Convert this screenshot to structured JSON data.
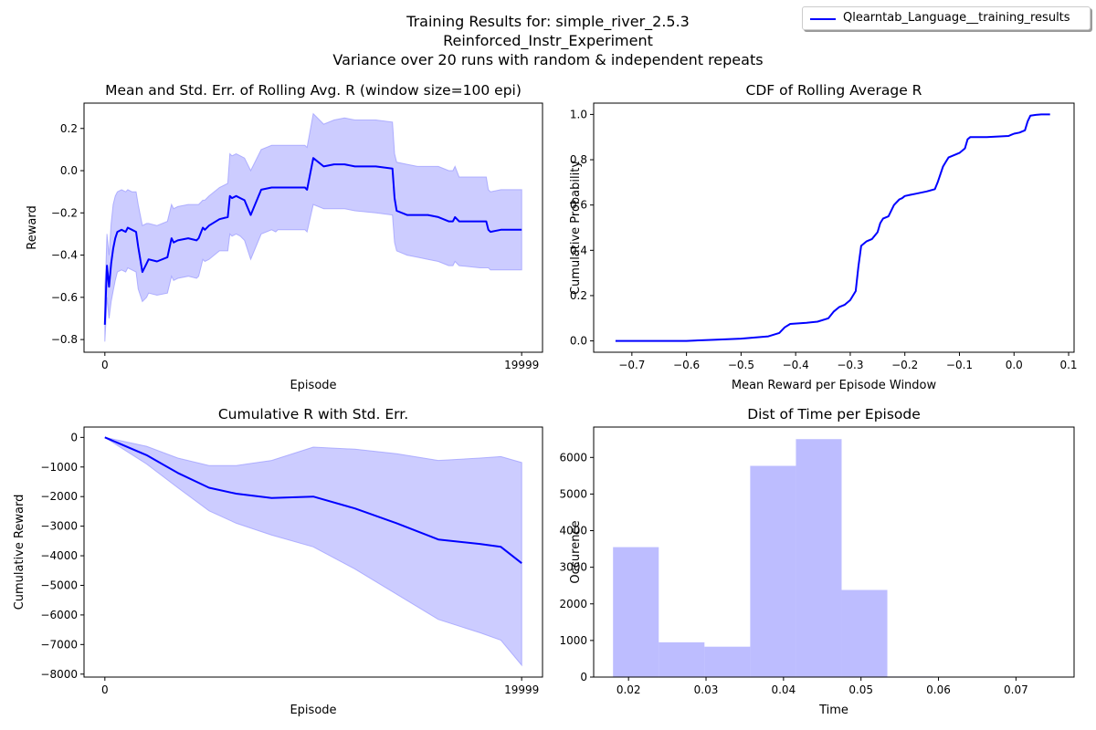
{
  "figure": {
    "suptitle": [
      "Training Results for: simple_river_2.5.3",
      "Reinforced_Instr_Experiment",
      "Variance over 20 runs with random & independent repeats"
    ],
    "legend_label": "Qlearntab_Language__training_results",
    "line_color": "#0000ff",
    "fill_color": "#9999ff"
  },
  "chart_data": [
    {
      "type": "line",
      "title": "Mean and Std. Err. of Rolling Avg. R (window size=100 epi)",
      "xlabel": "Episode",
      "ylabel": "Reward",
      "xlim": [
        -1000,
        21000
      ],
      "ylim": [
        -0.86,
        0.32
      ],
      "xticks": [
        0,
        19999
      ],
      "xticklabels": [
        "0",
        "19999"
      ],
      "yticks": [
        -0.8,
        -0.6,
        -0.4,
        -0.2,
        0.0,
        0.2
      ],
      "yticklabels": [
        "−0.8",
        "−0.6",
        "−0.4",
        "−0.2",
        "0.0",
        "0.2"
      ],
      "series": [
        {
          "x": [
            0,
            50,
            100,
            200,
            300,
            400,
            500,
            600,
            800,
            1000,
            1100,
            1300,
            1500,
            1600,
            1800,
            2000,
            2100,
            2500,
            3000,
            3200,
            3300,
            3500,
            4000,
            4400,
            4500,
            4700,
            4800,
            5000,
            5500,
            5900,
            6000,
            6100,
            6300,
            6500,
            6700,
            7000,
            7500,
            8000,
            8200,
            8300,
            8500,
            9000,
            9600,
            9700,
            10000,
            10500,
            11000,
            11500,
            12000,
            13000,
            13800,
            13900,
            14000,
            14500,
            15000,
            15500,
            16000,
            16500,
            16700,
            16800,
            17000,
            18000,
            18300,
            18400,
            18500,
            19000,
            19500,
            19999
          ],
          "mean": [
            -0.73,
            -0.58,
            -0.45,
            -0.55,
            -0.44,
            -0.37,
            -0.32,
            -0.29,
            -0.28,
            -0.29,
            -0.27,
            -0.28,
            -0.29,
            -0.36,
            -0.48,
            -0.44,
            -0.42,
            -0.43,
            -0.41,
            -0.32,
            -0.34,
            -0.33,
            -0.32,
            -0.33,
            -0.32,
            -0.27,
            -0.28,
            -0.26,
            -0.23,
            -0.22,
            -0.12,
            -0.13,
            -0.12,
            -0.13,
            -0.14,
            -0.21,
            -0.09,
            -0.08,
            -0.08,
            -0.08,
            -0.08,
            -0.08,
            -0.08,
            -0.09,
            0.06,
            0.02,
            0.03,
            0.03,
            0.02,
            0.02,
            0.01,
            -0.13,
            -0.19,
            -0.21,
            -0.21,
            -0.21,
            -0.22,
            -0.24,
            -0.24,
            -0.22,
            -0.24,
            -0.24,
            -0.24,
            -0.28,
            -0.29,
            -0.28,
            -0.28,
            -0.28
          ],
          "upper": [
            -0.55,
            -0.45,
            -0.3,
            -0.4,
            -0.25,
            -0.16,
            -0.12,
            -0.1,
            -0.09,
            -0.1,
            -0.09,
            -0.1,
            -0.1,
            -0.16,
            -0.26,
            -0.25,
            -0.25,
            -0.26,
            -0.24,
            -0.16,
            -0.18,
            -0.17,
            -0.16,
            -0.16,
            -0.16,
            -0.14,
            -0.14,
            -0.12,
            -0.08,
            -0.06,
            0.08,
            0.07,
            0.08,
            0.07,
            0.06,
            0.0,
            0.1,
            0.12,
            0.12,
            0.12,
            0.12,
            0.12,
            0.12,
            0.11,
            0.27,
            0.22,
            0.24,
            0.25,
            0.24,
            0.24,
            0.23,
            0.08,
            0.04,
            0.03,
            0.02,
            0.02,
            0.02,
            0.0,
            0.0,
            0.02,
            -0.03,
            -0.03,
            -0.03,
            -0.09,
            -0.1,
            -0.09,
            -0.09,
            -0.09
          ],
          "lower": [
            -0.81,
            -0.71,
            -0.6,
            -0.7,
            -0.62,
            -0.57,
            -0.52,
            -0.48,
            -0.47,
            -0.48,
            -0.46,
            -0.47,
            -0.48,
            -0.56,
            -0.62,
            -0.6,
            -0.58,
            -0.59,
            -0.58,
            -0.5,
            -0.52,
            -0.51,
            -0.5,
            -0.51,
            -0.5,
            -0.42,
            -0.43,
            -0.42,
            -0.38,
            -0.38,
            -0.3,
            -0.31,
            -0.3,
            -0.31,
            -0.33,
            -0.42,
            -0.3,
            -0.28,
            -0.29,
            -0.28,
            -0.28,
            -0.28,
            -0.28,
            -0.29,
            -0.16,
            -0.18,
            -0.18,
            -0.18,
            -0.19,
            -0.2,
            -0.21,
            -0.34,
            -0.38,
            -0.4,
            -0.41,
            -0.42,
            -0.43,
            -0.45,
            -0.45,
            -0.43,
            -0.45,
            -0.46,
            -0.46,
            -0.46,
            -0.47,
            -0.47,
            -0.47,
            -0.47
          ]
        }
      ]
    },
    {
      "type": "line",
      "title": "CDF of Rolling Average R",
      "xlabel": "Mean Reward per Episode Window",
      "ylabel": "Cumulative Probability",
      "xlim": [
        -0.77,
        0.11
      ],
      "ylim": [
        -0.05,
        1.05
      ],
      "xticks": [
        -0.7,
        -0.6,
        -0.5,
        -0.4,
        -0.3,
        -0.2,
        -0.1,
        0.0,
        0.1
      ],
      "xticklabels": [
        "−0.7",
        "−0.6",
        "−0.5",
        "−0.4",
        "−0.3",
        "−0.2",
        "−0.1",
        "0.0",
        "0.1"
      ],
      "yticks": [
        0.0,
        0.2,
        0.4,
        0.6,
        0.8,
        1.0
      ],
      "yticklabels": [
        "0.0",
        "0.2",
        "0.4",
        "0.6",
        "0.8",
        "1.0"
      ],
      "series": [
        {
          "x": [
            -0.73,
            -0.6,
            -0.55,
            -0.5,
            -0.45,
            -0.43,
            -0.42,
            -0.41,
            -0.38,
            -0.36,
            -0.34,
            -0.33,
            -0.32,
            -0.31,
            -0.3,
            -0.29,
            -0.285,
            -0.28,
            -0.27,
            -0.26,
            -0.25,
            -0.245,
            -0.24,
            -0.23,
            -0.22,
            -0.21,
            -0.205,
            -0.2,
            -0.19,
            -0.18,
            -0.16,
            -0.145,
            -0.14,
            -0.13,
            -0.125,
            -0.12,
            -0.11,
            -0.1,
            -0.09,
            -0.085,
            -0.08,
            -0.07,
            -0.05,
            -0.01,
            -0.005,
            0.0,
            0.01,
            0.02,
            0.025,
            0.03,
            0.04,
            0.05,
            0.066
          ],
          "y": [
            0.0,
            0.0,
            0.005,
            0.01,
            0.02,
            0.035,
            0.06,
            0.075,
            0.08,
            0.085,
            0.1,
            0.13,
            0.15,
            0.16,
            0.18,
            0.22,
            0.33,
            0.42,
            0.44,
            0.45,
            0.48,
            0.52,
            0.54,
            0.55,
            0.6,
            0.625,
            0.63,
            0.64,
            0.645,
            0.65,
            0.66,
            0.67,
            0.7,
            0.77,
            0.79,
            0.81,
            0.82,
            0.83,
            0.85,
            0.89,
            0.9,
            0.9,
            0.9,
            0.905,
            0.91,
            0.915,
            0.92,
            0.93,
            0.97,
            0.995,
            0.998,
            1.0,
            1.0
          ]
        }
      ]
    },
    {
      "type": "line",
      "title": "Cumulative R with Std. Err.",
      "xlabel": "Episode",
      "ylabel": "Cumulative Reward",
      "xlim": [
        -1000,
        21000
      ],
      "ylim": [
        -8100,
        350
      ],
      "xticks": [
        0,
        19999
      ],
      "xticklabels": [
        "0",
        "19999"
      ],
      "yticks": [
        0,
        -1000,
        -2000,
        -3000,
        -4000,
        -5000,
        -6000,
        -7000,
        -8000
      ],
      "yticklabels": [
        "0",
        "−1000",
        "−2000",
        "−3000",
        "−4000",
        "−5000",
        "−6000",
        "−7000",
        "−8000"
      ],
      "series": [
        {
          "x": [
            0,
            2000,
            3500,
            5000,
            6300,
            8000,
            10000,
            12000,
            14000,
            16000,
            18000,
            19000,
            19999
          ],
          "mean": [
            0,
            -600,
            -1200,
            -1700,
            -1900,
            -2050,
            -2000,
            -2400,
            -2900,
            -3450,
            -3600,
            -3700,
            -4250
          ],
          "upper": [
            0,
            -300,
            -700,
            -950,
            -950,
            -780,
            -330,
            -400,
            -550,
            -780,
            -700,
            -650,
            -850
          ],
          "lower": [
            0,
            -900,
            -1700,
            -2480,
            -2900,
            -3300,
            -3700,
            -4450,
            -5300,
            -6150,
            -6600,
            -6850,
            -7700
          ]
        }
      ]
    },
    {
      "type": "bar",
      "title": "Dist of Time per Episode",
      "xlabel": "Time",
      "ylabel": "Occurence",
      "xlim": [
        0.0155,
        0.0775
      ],
      "ylim": [
        0,
        6830
      ],
      "xticks": [
        0.02,
        0.03,
        0.04,
        0.05,
        0.06,
        0.07
      ],
      "xticklabels": [
        "0.02",
        "0.03",
        "0.04",
        "0.05",
        "0.06",
        "0.07"
      ],
      "yticks": [
        0,
        1000,
        2000,
        3000,
        4000,
        5000,
        6000
      ],
      "yticklabels": [
        "0",
        "1000",
        "2000",
        "3000",
        "4000",
        "5000",
        "6000"
      ],
      "bin_edges": [
        0.018,
        0.0239,
        0.0298,
        0.0357,
        0.0416,
        0.0475,
        0.0534,
        0.0593,
        0.0652,
        0.0711,
        0.077
      ],
      "values": [
        3550,
        950,
        830,
        5770,
        6500,
        2380,
        15,
        3,
        2,
        1
      ]
    }
  ]
}
